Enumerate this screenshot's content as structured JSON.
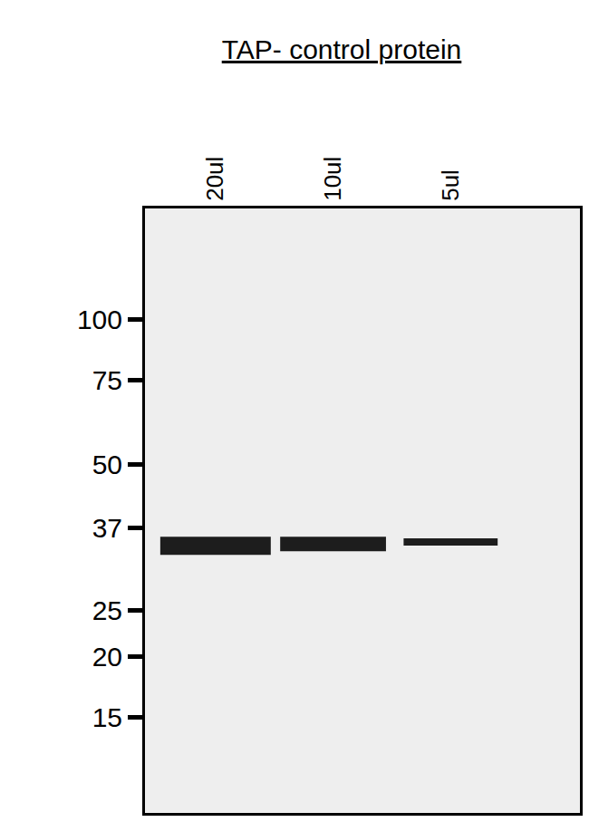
{
  "chart_data": {
    "type": "western_blot",
    "title": "TAP- control protein",
    "categories": [
      "20ul",
      "10ul",
      "5ul"
    ],
    "values": [
      34,
      34.3,
      34.6
    ],
    "color": "#111111",
    "log": "y",
    "ylim": [
      9.5,
      170
    ],
    "yticks": [
      15,
      20,
      25,
      37,
      50,
      75,
      100
    ]
  }
}
